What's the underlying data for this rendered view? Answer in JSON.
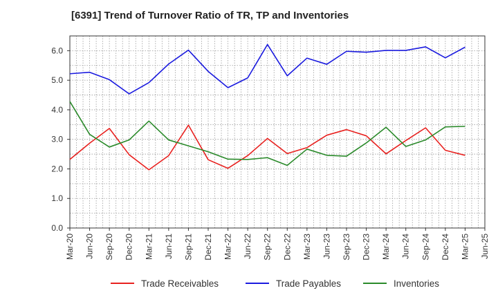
{
  "chart_data": {
    "type": "line",
    "title": "[6391]  Trend of Turnover Ratio of TR, TP and Inventories",
    "xlabel": "",
    "ylabel": "",
    "ylim": [
      0,
      6.5
    ],
    "yticks": [
      "0.0",
      "1.0",
      "2.0",
      "3.0",
      "4.0",
      "5.0",
      "6.0"
    ],
    "grid": true,
    "legend_position": "bottom",
    "x_tick_labels": [
      "Mar-20",
      "Jun-20",
      "Sep-20",
      "Dec-20",
      "Mar-21",
      "Jun-21",
      "Sep-21",
      "Dec-21",
      "Mar-22",
      "Jun-22",
      "Sep-22",
      "Dec-22",
      "Mar-23",
      "Jun-23",
      "Sep-23",
      "Dec-23",
      "Mar-24",
      "Jun-24",
      "Sep-24",
      "Dec-24",
      "Mar-25",
      "Jun-25"
    ],
    "x": [
      "Mar-20",
      "Jun-20",
      "Sep-20",
      "Dec-20",
      "Mar-21",
      "Jun-21",
      "Sep-21",
      "Dec-21",
      "Mar-22",
      "Jun-22",
      "Sep-22",
      "Dec-22",
      "Mar-23",
      "Jun-23",
      "Sep-23",
      "Dec-23",
      "Mar-24",
      "Jun-24",
      "Sep-24",
      "Dec-24",
      "Mar-25"
    ],
    "series": [
      {
        "name": "Trade Receivables",
        "color": "#e8201e",
        "values": [
          2.32,
          2.87,
          3.37,
          2.48,
          1.97,
          2.45,
          3.48,
          2.31,
          2.02,
          2.45,
          3.03,
          2.52,
          2.72,
          3.14,
          3.33,
          3.12,
          2.51,
          2.96,
          3.39,
          2.63,
          2.46
        ]
      },
      {
        "name": "Trade Payables",
        "color": "#1a1adf",
        "values": [
          5.22,
          5.27,
          5.02,
          4.54,
          4.92,
          5.55,
          6.02,
          5.3,
          4.75,
          5.08,
          6.21,
          5.15,
          5.75,
          5.54,
          5.98,
          5.95,
          6.01,
          6.01,
          6.13,
          5.76,
          6.12
        ]
      },
      {
        "name": "Inventories",
        "color": "#2a8a2a",
        "values": [
          4.28,
          3.17,
          2.74,
          2.98,
          3.62,
          2.98,
          2.78,
          2.58,
          2.33,
          2.32,
          2.38,
          2.12,
          2.67,
          2.46,
          2.43,
          2.88,
          3.41,
          2.76,
          2.98,
          3.42,
          3.44
        ]
      }
    ]
  }
}
